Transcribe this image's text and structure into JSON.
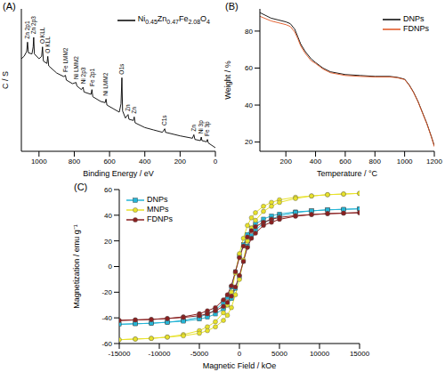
{
  "chart_data": [
    {
      "type": "line",
      "title": "(A)",
      "x_label": "Binding Energy / eV",
      "y_label": "C / S",
      "xlim": [
        1100,
        0
      ],
      "xticks": [
        1000,
        800,
        600,
        400,
        200,
        0
      ],
      "ylim": [
        0,
        120
      ],
      "tick_labels": "x",
      "grid": false,
      "legend": "upper right",
      "x": [
        1100,
        1085,
        1070,
        1065,
        1060,
        1040,
        1033,
        1030,
        1026,
        1000,
        985,
        980,
        975,
        955,
        950,
        945,
        900,
        860,
        850,
        845,
        810,
        790,
        785,
        760,
        750,
        745,
        705,
        700,
        695,
        650,
        625,
        620,
        615,
        580,
        545,
        535,
        530,
        526,
        510,
        495,
        490,
        465,
        460,
        455,
        400,
        350,
        300,
        287,
        283,
        200,
        130,
        122,
        116,
        85,
        80,
        76,
        50,
        45,
        40,
        20,
        0
      ],
      "series": [
        {
          "name": "Ni0.45Zn0.47Fe2.08O4",
          "color": "#000000",
          "values": [
            78,
            80,
            84,
            92,
            83,
            82,
            88,
            96,
            82,
            78,
            80,
            88,
            76,
            74,
            80,
            72,
            66,
            63,
            64,
            60,
            57,
            58,
            55,
            52,
            54,
            50,
            48,
            52,
            46,
            42,
            41,
            44,
            39,
            36,
            33,
            40,
            62,
            34,
            28,
            31,
            27,
            26,
            29,
            24,
            20,
            18,
            16,
            19,
            16,
            13,
            11,
            14,
            10,
            9,
            12,
            9,
            8,
            10,
            7,
            5,
            3
          ]
        }
      ],
      "annotations": [
        {
          "text": "Zn 2p1",
          "x": 1065,
          "y": 94
        },
        {
          "text": "Zn 2p3",
          "x": 1030,
          "y": 98
        },
        {
          "text": "O KLL",
          "x": 980,
          "y": 90
        },
        {
          "text": "O KLL",
          "x": 950,
          "y": 82
        },
        {
          "text": "Fe LMM2",
          "x": 850,
          "y": 66
        },
        {
          "text": "Ni LMM2",
          "x": 790,
          "y": 60
        },
        {
          "text": "Ni 2p3",
          "x": 750,
          "y": 56
        },
        {
          "text": "Fe 2p1",
          "x": 700,
          "y": 54
        },
        {
          "text": "Ni LMM2",
          "x": 620,
          "y": 46
        },
        {
          "text": "O1s",
          "x": 530,
          "y": 64
        },
        {
          "text": "Zn",
          "x": 495,
          "y": 33
        },
        {
          "text": "Zn",
          "x": 460,
          "y": 31
        },
        {
          "text": "C1s",
          "x": 287,
          "y": 21
        },
        {
          "text": "Zn",
          "x": 122,
          "y": 16
        },
        {
          "text": "Ni 3p",
          "x": 80,
          "y": 14
        },
        {
          "text": "Fe 3p",
          "x": 45,
          "y": 12
        }
      ]
    },
    {
      "type": "line",
      "title": "(B)",
      "x_label": "Temperature / °C",
      "y_label": "Weight / %",
      "xlim": [
        25,
        1200
      ],
      "xticks": [
        200,
        400,
        600,
        800,
        1000,
        1200
      ],
      "ylim": [
        15,
        92
      ],
      "yticks": [
        20,
        40,
        60,
        80
      ],
      "grid": false,
      "legend": "upper right",
      "x": [
        25,
        100,
        150,
        200,
        230,
        260,
        280,
        300,
        330,
        370,
        400,
        450,
        500,
        600,
        700,
        800,
        900,
        950,
        1000,
        1030,
        1060,
        1090,
        1120,
        1150,
        1180,
        1200
      ],
      "series": [
        {
          "name": "DNPs",
          "color": "#000000",
          "values": [
            90,
            87,
            86,
            85,
            84,
            81,
            77,
            73,
            69,
            65,
            63,
            60,
            58,
            56.5,
            56,
            55.5,
            55.5,
            55,
            54,
            51,
            47,
            42,
            36,
            30,
            23,
            18
          ]
        },
        {
          "name": "FDNPs",
          "color": "#e0531f",
          "values": [
            88,
            85.5,
            84.5,
            83.5,
            82.5,
            79.5,
            76,
            72,
            68,
            64,
            62.5,
            59.5,
            57.5,
            56,
            55.5,
            55.2,
            55.2,
            54.8,
            53.8,
            50.8,
            46.8,
            41.8,
            35.8,
            29.8,
            22.8,
            17.5
          ]
        }
      ]
    },
    {
      "type": "line",
      "title": "(C)",
      "x_label": "Magnetic Field / kOe",
      "y_label": "Magnetization / emu g⁻¹",
      "xlim": [
        -15000,
        15000
      ],
      "xticks": [
        -15000,
        -10000,
        -5000,
        0,
        5000,
        10000,
        15000
      ],
      "ylim": [
        -60,
        60
      ],
      "yticks": [
        -60,
        -40,
        -20,
        0,
        20,
        40,
        60
      ],
      "grid": false,
      "legend": "upper left",
      "x": [
        15000,
        13000,
        11000,
        9000,
        7000,
        5000,
        4000,
        3000,
        2000,
        1500,
        1000,
        500,
        0,
        -500,
        -1000,
        -1500,
        -2000,
        -3000,
        -4000,
        -5000,
        -7000,
        -9000,
        -11000,
        -13000,
        -15000,
        -13000,
        -11000,
        -9000,
        -7000,
        -5000,
        -4000,
        -3000,
        -2000,
        -1500,
        -1000,
        -500,
        0,
        500,
        1000,
        1500,
        2000,
        3000,
        4000,
        5000,
        7000,
        9000,
        11000,
        13000,
        15000
      ],
      "series": [
        {
          "name": "DNPs",
          "color": "#25b5d6",
          "marker": "square",
          "values": [
            45,
            44.6,
            44.2,
            43.4,
            42.6,
            41,
            39.5,
            37,
            33,
            30,
            25,
            17,
            8,
            -4,
            -16,
            -24,
            -28,
            -34,
            -37,
            -39.5,
            -42,
            -43.4,
            -44.2,
            -44.6,
            -45,
            -44.6,
            -44.2,
            -43.4,
            -42.6,
            -41,
            -39.5,
            -37,
            -33,
            -30,
            -25,
            -17,
            -8,
            4,
            16,
            24,
            28,
            34,
            37,
            39.5,
            42,
            43.4,
            44.2,
            44.6,
            45
          ]
        },
        {
          "name": "MNPs",
          "color": "#e8e22a",
          "marker": "circle",
          "values": [
            57,
            56.5,
            56,
            55,
            54,
            52,
            50,
            47,
            42,
            38,
            32,
            22,
            10,
            -5,
            -20,
            -30,
            -36,
            -43,
            -47,
            -50,
            -53,
            -55,
            -56,
            -56.5,
            -57,
            -56.5,
            -56,
            -55,
            -54,
            -52,
            -50,
            -47,
            -42,
            -38,
            -32,
            -22,
            -10,
            5,
            20,
            30,
            36,
            43,
            47,
            50,
            53,
            55,
            56,
            56.5,
            57
          ]
        },
        {
          "name": "FDNPs",
          "color": "#8a1f1f",
          "marker": "circle",
          "values": [
            42,
            41.6,
            41.2,
            40.5,
            39.7,
            38.3,
            36.8,
            34.5,
            31,
            28,
            23,
            16,
            7,
            -4,
            -15,
            -22,
            -26,
            -32,
            -34.5,
            -36.8,
            -39.2,
            -40.5,
            -41.2,
            -41.6,
            -42,
            -41.6,
            -41.2,
            -40.5,
            -39.7,
            -38.3,
            -36.8,
            -34.5,
            -31,
            -28,
            -23,
            -16,
            -7,
            4,
            15,
            22,
            26,
            32,
            34.5,
            36.8,
            39.2,
            40.5,
            41.2,
            41.6,
            42
          ]
        }
      ]
    }
  ]
}
